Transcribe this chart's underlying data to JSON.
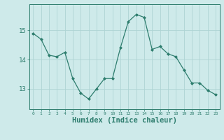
{
  "x": [
    0,
    1,
    2,
    3,
    4,
    5,
    6,
    7,
    8,
    9,
    10,
    11,
    12,
    13,
    14,
    15,
    16,
    17,
    18,
    19,
    20,
    21,
    22,
    23
  ],
  "y": [
    14.9,
    14.7,
    14.15,
    14.1,
    14.25,
    13.35,
    12.85,
    12.65,
    13.0,
    13.35,
    13.35,
    14.4,
    15.3,
    15.55,
    15.45,
    14.35,
    14.45,
    14.2,
    14.1,
    13.65,
    13.2,
    13.2,
    12.95,
    12.8
  ],
  "line_color": "#2e7d6e",
  "marker": "D",
  "marker_size": 2.0,
  "bg_color": "#ceeaea",
  "grid_color": "#aed4d4",
  "tick_color": "#2e7d6e",
  "spine_color": "#2e7d6e",
  "xlabel": "Humidex (Indice chaleur)",
  "xlabel_fontsize": 7.5,
  "yticks": [
    13,
    14,
    15
  ],
  "ylim": [
    12.3,
    15.9
  ],
  "xlim": [
    -0.5,
    23.5
  ],
  "figsize": [
    3.2,
    2.0
  ],
  "dpi": 100
}
